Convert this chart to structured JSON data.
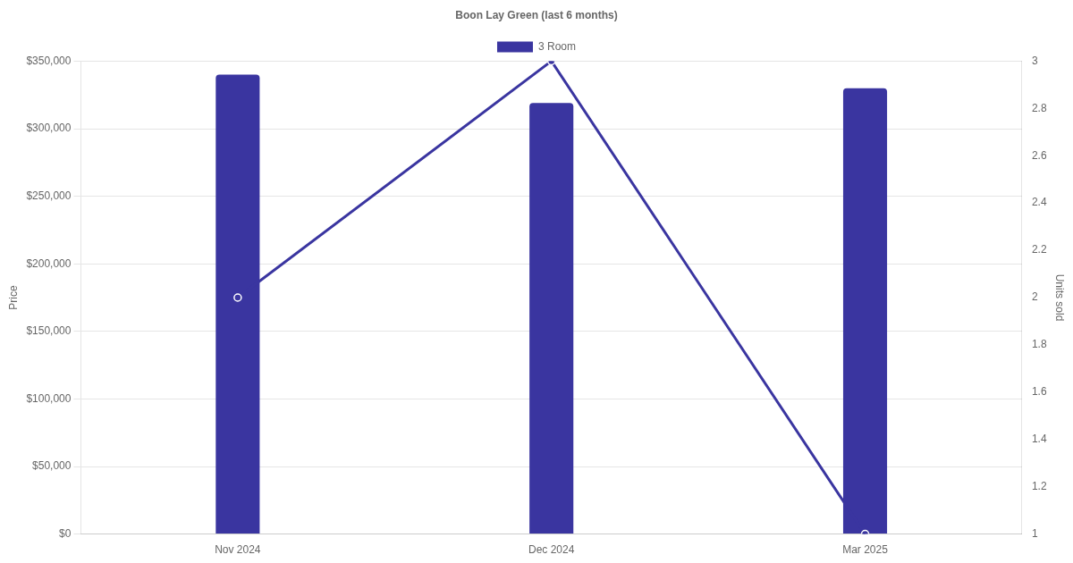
{
  "chart_data": {
    "type": "bar",
    "title": "Boon Lay Green (last 6 months)",
    "ylabel": "Price",
    "y2label": "Units sold",
    "categories": [
      "Nov 2024",
      "Dec 2024",
      "Mar 2025"
    ],
    "series": [
      {
        "name": "3 Room",
        "color": "#3a35a0",
        "values": [
          340000,
          319000,
          330000
        ]
      },
      {
        "type": "line",
        "axis": "y2",
        "color": "#3a35a0",
        "values": [
          2,
          3,
          1
        ],
        "marker": "circle",
        "line_style": "solid"
      }
    ],
    "ylim": [
      0,
      350000
    ],
    "yticks": [
      {
        "value": 0,
        "label": "$0"
      },
      {
        "value": 50000,
        "label": "$50,000"
      },
      {
        "value": 100000,
        "label": "$100,000"
      },
      {
        "value": 150000,
        "label": "$150,000"
      },
      {
        "value": 200000,
        "label": "$200,000"
      },
      {
        "value": 250000,
        "label": "$250,000"
      },
      {
        "value": 300000,
        "label": "$300,000"
      },
      {
        "value": 350000,
        "label": "$350,000"
      }
    ],
    "y2lim": [
      1,
      3
    ],
    "y2ticks": [
      1,
      1.2,
      1.4,
      1.6,
      1.8,
      2,
      2.2,
      2.4,
      2.6,
      2.8,
      3
    ],
    "grid": "y",
    "legend": "top"
  }
}
